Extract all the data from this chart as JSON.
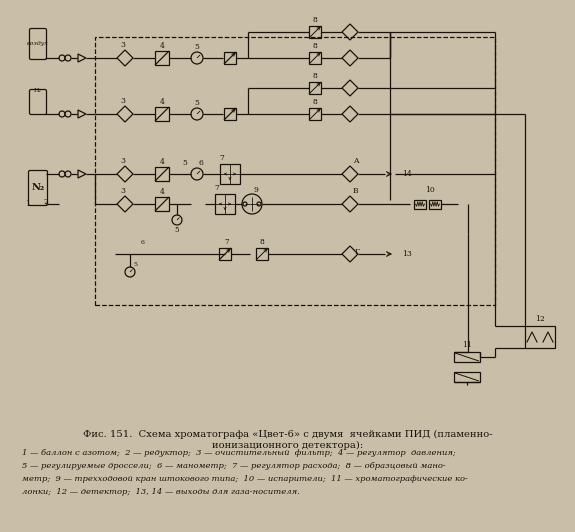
{
  "bg_color": "#c9bfa9",
  "line_color": "#1a1208",
  "fig_w": 5.75,
  "fig_h": 5.32,
  "dpi": 100,
  "title1": "Фис. 151.  Схема хроматографа «Цвет-6» с двумя  ячейками ПИД (пламенно-",
  "title2": "ионизационного детектора):",
  "cap1": "1 — баллон с азотом;  2 — редуктор;  3 — очистительный  фильтр;  4 — регулятор  давления;",
  "cap2": "5 — регулируемые дроссели;  6 — манометр;  7 — регулятор расхода;  8 — образцовый мано-",
  "cap3": "метр;  9 — трехходовой кран штокового типа;  10 — испарители;  11 — хроматографические ко-",
  "cap4": "лонки;  12 — детектор;  13, 14 — выходы для газа-носителя."
}
